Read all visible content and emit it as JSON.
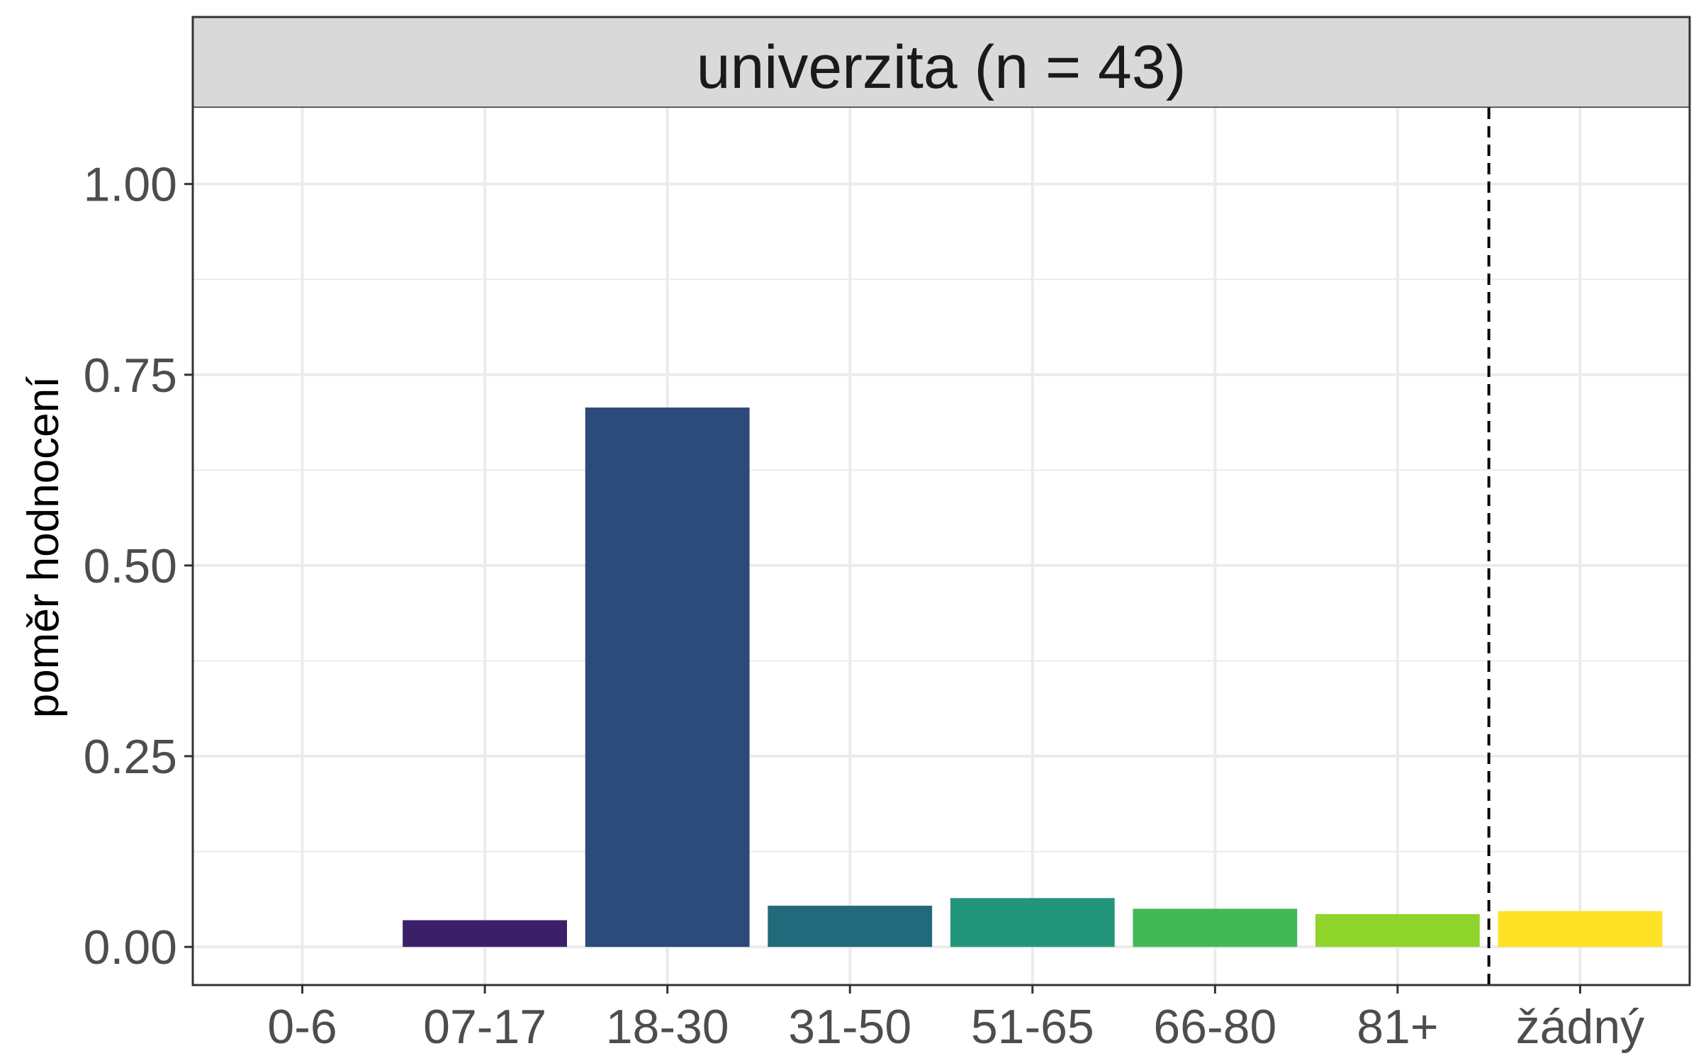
{
  "chart_data": {
    "type": "bar",
    "facet_label": "univerzita (n = 43)",
    "ylabel": "poměr hodnocení",
    "xlabel": "",
    "ylim": [
      -0.05,
      1.1
    ],
    "y_ticks": [
      "0.00",
      "0.25",
      "0.50",
      "0.75",
      "1.00"
    ],
    "y_tick_values": [
      0,
      0.25,
      0.5,
      0.75,
      1.0
    ],
    "categories": [
      "0-6",
      "07-17",
      "18-30",
      "31-50",
      "51-65",
      "66-80",
      "81+",
      "žádný"
    ],
    "values": [
      0.0,
      0.035,
      0.707,
      0.054,
      0.064,
      0.05,
      0.043,
      0.047
    ],
    "colors": [
      "#440154",
      "#3b2069",
      "#2c4a7a",
      "#21697b",
      "#22957a",
      "#42b856",
      "#8fd52b",
      "#fde225"
    ],
    "separator_between": [
      "81+",
      "žádný"
    ],
    "grid": true,
    "legend": "none"
  }
}
